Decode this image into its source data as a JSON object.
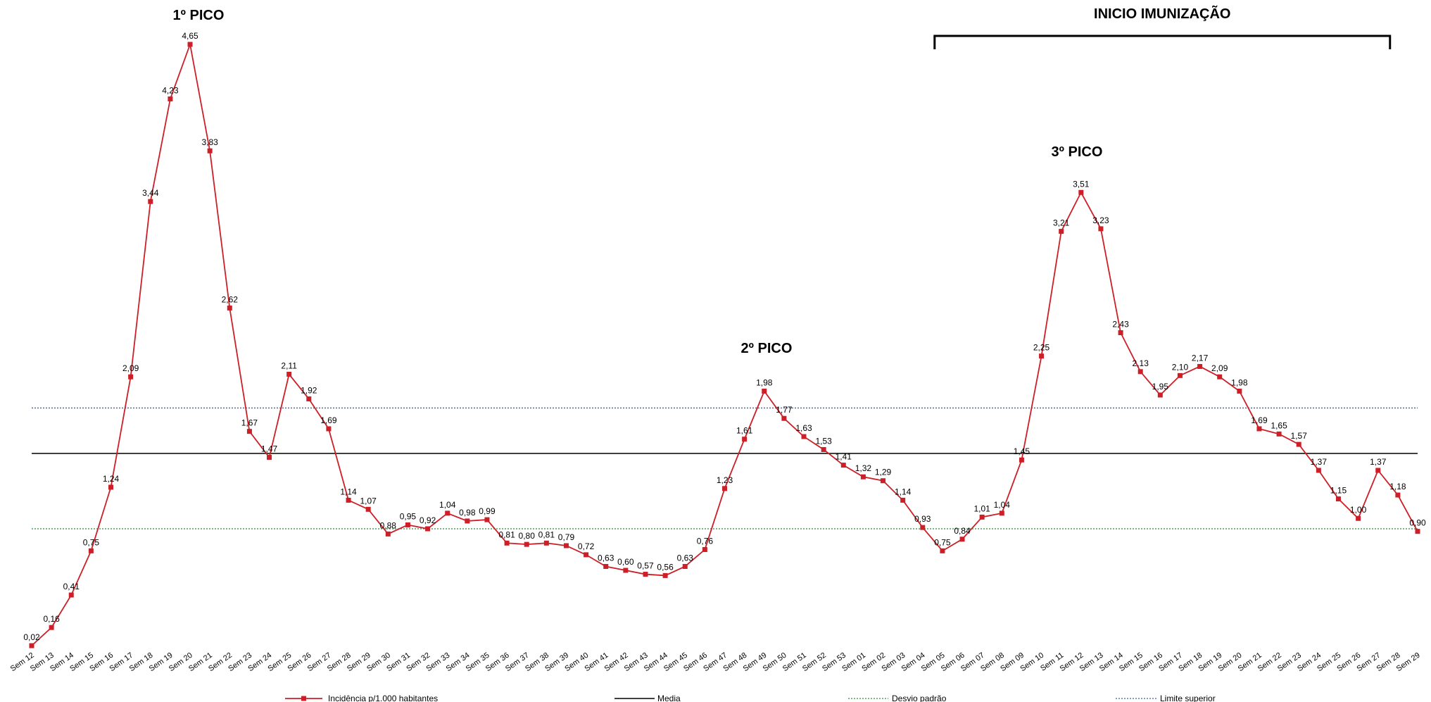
{
  "chart_data": {
    "type": "line",
    "categories": [
      "Sem 12",
      "Sem 13",
      "Sem 14",
      "Sem 15",
      "Sem 16",
      "Sem 17",
      "Sem 18",
      "Sem 19",
      "Sem 20",
      "Sem 21",
      "Sem 22",
      "Sem 23",
      "Sem 24",
      "Sem 25",
      "Sem 26",
      "Sem 27",
      "Sem 28",
      "Sem 29",
      "Sem 30",
      "Sem 31",
      "Sem 32",
      "Sem 33",
      "Sem 34",
      "Sem 35",
      "Sem 36",
      "Sem 37",
      "Sem 38",
      "Sem 39",
      "Sem 40",
      "Sem 41",
      "Sem 42",
      "Sem 43",
      "Sem 44",
      "Sem 45",
      "Sem 46",
      "Sem 47",
      "Sem 48",
      "Sem 49",
      "Sem 50",
      "Sem 51",
      "Sem 52",
      "Sem 53",
      "Sem 01",
      "Sem 02",
      "Sem 03",
      "Sem 04",
      "Sem 05",
      "Sem 06",
      "Sem 07",
      "Sem 08",
      "Sem 09",
      "Sem 10",
      "Sem 11",
      "Sem 12",
      "Sem 13",
      "Sem 14",
      "Sem 15",
      "Sem 16",
      "Sem 17",
      "Sem 18",
      "Sem 19",
      "Sem 20",
      "Sem 21",
      "Sem 22",
      "Sem 23",
      "Sem 24",
      "Sem 25",
      "Sem 26",
      "Sem 27",
      "Sem 28",
      "Sem 29"
    ],
    "series": [
      {
        "name": "Incidência p/1.000 habitantes",
        "color": "#cc1f27",
        "marker": "square",
        "values": [
          0.02,
          0.16,
          0.41,
          0.75,
          1.24,
          2.09,
          3.44,
          4.23,
          4.65,
          3.83,
          2.62,
          1.67,
          1.47,
          2.11,
          1.92,
          1.69,
          1.14,
          1.07,
          0.88,
          0.95,
          0.92,
          1.04,
          0.98,
          0.99,
          0.81,
          0.8,
          0.81,
          0.79,
          0.72,
          0.63,
          0.6,
          0.57,
          0.56,
          0.63,
          0.76,
          1.23,
          1.61,
          1.98,
          1.77,
          1.63,
          1.53,
          1.41,
          1.32,
          1.29,
          1.14,
          0.93,
          0.75,
          0.84,
          1.01,
          1.04,
          1.45,
          2.25,
          3.21,
          3.51,
          3.23,
          2.43,
          2.13,
          1.95,
          2.1,
          2.17,
          2.09,
          1.98,
          1.69,
          1.65,
          1.57,
          1.37,
          1.15,
          1.0,
          1.37,
          1.18,
          0.9
        ],
        "labels": [
          "0,02",
          "0,16",
          "0,41",
          "0,75",
          "1,24",
          "2,09",
          "3,44",
          "4,23",
          "4,65",
          "3,83",
          "2,62",
          "1,67",
          "1,47",
          "2,11",
          "1,92",
          "1,69",
          "1,14",
          "1,07",
          "0,88",
          "0,95",
          "0,92",
          "1,04",
          "0,98",
          "0,99",
          "0,81",
          "0,80",
          "0,81",
          "0,79",
          "0,72",
          "0,63",
          "0,60",
          "0,57",
          "0,56",
          "0,63",
          "0,76",
          "1,23",
          "1,61",
          "1,98",
          "1,77",
          "1,63",
          "1,53",
          "1,41",
          "1,32",
          "1,29",
          "1,14",
          "0,93",
          "0,75",
          "0,84",
          "1,01",
          "1,04",
          "1,45",
          "2,25",
          "3,21",
          "3,51",
          "3,23",
          "2,43",
          "2,13",
          "1,95",
          "2,10",
          "2,17",
          "2,09",
          "1,98",
          "1,69",
          "1,65",
          "1,57",
          "1,37",
          "1,15",
          "1,00",
          "1,37",
          "1,18",
          "0,90"
        ]
      }
    ],
    "reference_lines": [
      {
        "name": "Media",
        "value": 1.5,
        "color": "#000000",
        "style": "solid"
      },
      {
        "name": "Desvio padrão",
        "value": 0.92,
        "color": "#2e8b3a",
        "style": "dotted"
      },
      {
        "name": "Limite superior",
        "value": 1.85,
        "color": "#3a5fb0",
        "style": "dotted"
      }
    ],
    "annotations": {
      "peak1": "1º PICO",
      "peak2": "2º PICO",
      "peak3": "3º PICO",
      "immunization": "INICIO IMUNIZAÇÃO"
    },
    "immunization_range": [
      "Sem 04",
      "Sem 27"
    ],
    "ylim": [
      0.02,
      4.65
    ],
    "grid": false,
    "legend_position": "bottom",
    "title": "",
    "xlabel": "",
    "ylabel": ""
  }
}
